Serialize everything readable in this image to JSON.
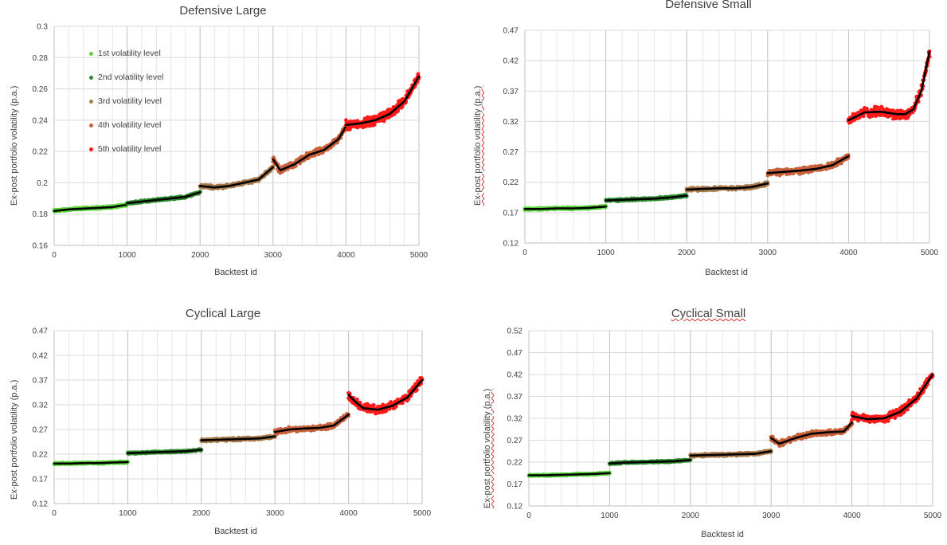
{
  "colors": {
    "level1": "#5ad63a",
    "level2": "#2e8b2e",
    "level3": "#a8784a",
    "level4": "#c8603a",
    "level5": "#ff1a1a",
    "trend": "#000000",
    "grid": "#d9d9d9"
  },
  "legend": [
    {
      "label": "1st volatility level",
      "color_key": "level1"
    },
    {
      "label": "2nd volatility level",
      "color_key": "level2"
    },
    {
      "label": "3rd volatility level",
      "color_key": "level3"
    },
    {
      "label": "4th volatility level",
      "color_key": "level4"
    },
    {
      "label": "5th volatility level",
      "color_key": "level5"
    }
  ],
  "chart_data": [
    {
      "type": "scatter",
      "title": "Defensive Large",
      "xlabel": "Backtest id",
      "ylabel": "Ex-post portfolio volatility (p.a.)",
      "xlim": [
        0,
        5000
      ],
      "ylim": [
        0.16,
        0.3
      ],
      "xticks": [
        "0",
        "1000",
        "2000",
        "3000",
        "4000",
        "5000"
      ],
      "yticks": [
        "0.16",
        "0.18",
        "0.2",
        "0.22",
        "0.24",
        "0.26",
        "0.28",
        "0.3"
      ],
      "series": [
        {
          "name": "1st volatility level",
          "color_key": "level1",
          "x": [
            0,
            200,
            400,
            600,
            800,
            1000
          ],
          "y": [
            0.182,
            0.183,
            0.1835,
            0.184,
            0.1845,
            0.186
          ]
        },
        {
          "name": "2nd volatility level",
          "color_key": "level2",
          "x": [
            1000,
            1200,
            1400,
            1600,
            1800,
            2000
          ],
          "y": [
            0.187,
            0.188,
            0.189,
            0.19,
            0.191,
            0.194
          ]
        },
        {
          "name": "3rd volatility level",
          "color_key": "level3",
          "x": [
            2000,
            2200,
            2400,
            2600,
            2800,
            3000
          ],
          "y": [
            0.198,
            0.197,
            0.198,
            0.2,
            0.202,
            0.21
          ]
        },
        {
          "name": "4th volatility level",
          "color_key": "level4",
          "x": [
            3000,
            3100,
            3300,
            3500,
            3700,
            3900,
            4000
          ],
          "y": [
            0.215,
            0.208,
            0.212,
            0.218,
            0.221,
            0.228,
            0.236
          ]
        },
        {
          "name": "5th volatility level",
          "color_key": "level5",
          "x": [
            4000,
            4200,
            4400,
            4600,
            4800,
            5000
          ],
          "y": [
            0.237,
            0.238,
            0.24,
            0.244,
            0.252,
            0.268
          ]
        }
      ]
    },
    {
      "type": "scatter",
      "title": "Defensive Small",
      "xlabel": "Backtest id",
      "ylabel": "Ex-post portfolio volatility (p.a.)",
      "xlim": [
        0,
        5000
      ],
      "ylim": [
        0.12,
        0.47
      ],
      "xticks": [
        "0",
        "1000",
        "2000",
        "3000",
        "4000",
        "5000"
      ],
      "yticks": [
        "0.12",
        "0.17",
        "0.22",
        "0.27",
        "0.32",
        "0.37",
        "0.42",
        "0.47"
      ],
      "series": [
        {
          "name": "1st volatility level",
          "color_key": "level1",
          "x": [
            0,
            200,
            400,
            600,
            800,
            1000
          ],
          "y": [
            0.176,
            0.176,
            0.177,
            0.177,
            0.178,
            0.18
          ]
        },
        {
          "name": "2nd volatility level",
          "color_key": "level2",
          "x": [
            1000,
            1200,
            1400,
            1600,
            1800,
            2000
          ],
          "y": [
            0.19,
            0.191,
            0.192,
            0.193,
            0.195,
            0.198
          ]
        },
        {
          "name": "3rd volatility level",
          "color_key": "level3",
          "x": [
            2000,
            2200,
            2400,
            2600,
            2800,
            3000
          ],
          "y": [
            0.208,
            0.209,
            0.21,
            0.21,
            0.212,
            0.218
          ]
        },
        {
          "name": "4th volatility level",
          "color_key": "level4",
          "x": [
            3000,
            3200,
            3400,
            3600,
            3800,
            4000
          ],
          "y": [
            0.235,
            0.237,
            0.239,
            0.242,
            0.248,
            0.263
          ]
        },
        {
          "name": "5th volatility level",
          "color_key": "level5",
          "x": [
            4000,
            4200,
            4400,
            4600,
            4700,
            4800,
            4900,
            5000
          ],
          "y": [
            0.322,
            0.335,
            0.336,
            0.332,
            0.332,
            0.34,
            0.37,
            0.435
          ]
        }
      ]
    },
    {
      "type": "scatter",
      "title": "Cyclical Large",
      "xlabel": "Backtest id",
      "ylabel": "Ex-post portfolio volatility (p.a.)",
      "xlim": [
        0,
        5000
      ],
      "ylim": [
        0.12,
        0.47
      ],
      "xticks": [
        "0",
        "1000",
        "2000",
        "3000",
        "4000",
        "5000"
      ],
      "yticks": [
        "0.12",
        "0.17",
        "0.22",
        "0.27",
        "0.32",
        "0.37",
        "0.42",
        "0.47"
      ],
      "series": [
        {
          "name": "1st volatility level",
          "color_key": "level1",
          "x": [
            0,
            200,
            400,
            600,
            800,
            1000
          ],
          "y": [
            0.201,
            0.201,
            0.202,
            0.202,
            0.203,
            0.204
          ]
        },
        {
          "name": "2nd volatility level",
          "color_key": "level2",
          "x": [
            1000,
            1200,
            1400,
            1600,
            1800,
            2000
          ],
          "y": [
            0.222,
            0.223,
            0.224,
            0.225,
            0.226,
            0.229
          ]
        },
        {
          "name": "3rd volatility level",
          "color_key": "level3",
          "x": [
            2000,
            2200,
            2400,
            2600,
            2800,
            3000
          ],
          "y": [
            0.248,
            0.249,
            0.25,
            0.251,
            0.252,
            0.256
          ]
        },
        {
          "name": "4th volatility level",
          "color_key": "level4",
          "x": [
            3000,
            3200,
            3400,
            3600,
            3800,
            4000
          ],
          "y": [
            0.265,
            0.27,
            0.272,
            0.273,
            0.278,
            0.3
          ]
        },
        {
          "name": "5th volatility level",
          "color_key": "level5",
          "x": [
            4000,
            4100,
            4200,
            4400,
            4600,
            4800,
            5000
          ],
          "y": [
            0.34,
            0.325,
            0.313,
            0.31,
            0.318,
            0.335,
            0.37
          ]
        }
      ]
    },
    {
      "type": "scatter",
      "title": "Cyclical Small",
      "xlabel": "Backtest id",
      "ylabel": "Ex-post portfolio volatility (p.a.)",
      "xlim": [
        0,
        5000
      ],
      "ylim": [
        0.12,
        0.52
      ],
      "xticks": [
        "0",
        "1000",
        "2000",
        "3000",
        "4000",
        "5000"
      ],
      "yticks": [
        "0.12",
        "0.17",
        "0.22",
        "0.27",
        "0.32",
        "0.37",
        "0.42",
        "0.47",
        "0.52"
      ],
      "series": [
        {
          "name": "1st volatility level",
          "color_key": "level1",
          "x": [
            0,
            200,
            400,
            600,
            800,
            1000
          ],
          "y": [
            0.19,
            0.19,
            0.191,
            0.192,
            0.193,
            0.195
          ]
        },
        {
          "name": "2nd volatility level",
          "color_key": "level2",
          "x": [
            1000,
            1200,
            1400,
            1600,
            1800,
            2000
          ],
          "y": [
            0.217,
            0.219,
            0.22,
            0.221,
            0.222,
            0.225
          ]
        },
        {
          "name": "3rd volatility level",
          "color_key": "level3",
          "x": [
            2000,
            2200,
            2400,
            2600,
            2800,
            3000
          ],
          "y": [
            0.235,
            0.236,
            0.237,
            0.238,
            0.239,
            0.245
          ]
        },
        {
          "name": "4th volatility level",
          "color_key": "level4",
          "x": [
            3000,
            3100,
            3300,
            3500,
            3700,
            3900,
            4000
          ],
          "y": [
            0.275,
            0.262,
            0.275,
            0.285,
            0.288,
            0.29,
            0.31
          ]
        },
        {
          "name": "5th volatility level",
          "color_key": "level5",
          "x": [
            4000,
            4200,
            4400,
            4600,
            4800,
            5000
          ],
          "y": [
            0.325,
            0.318,
            0.32,
            0.335,
            0.365,
            0.42
          ]
        }
      ]
    }
  ]
}
